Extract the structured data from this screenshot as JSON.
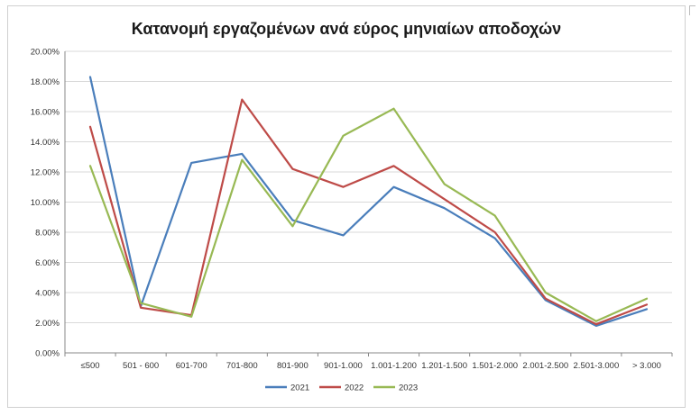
{
  "chart_data": {
    "type": "line",
    "title": "Κατανομή εργαζομένων ανά εύρος μηνιαίων αποδοχών",
    "xlabel": "",
    "ylabel": "",
    "ylim": [
      0,
      20
    ],
    "y_ticks": [
      "0.00%",
      "2.00%",
      "4.00%",
      "6.00%",
      "8.00%",
      "10.00%",
      "12.00%",
      "14.00%",
      "16.00%",
      "18.00%",
      "20.00%"
    ],
    "grid": true,
    "legend_position": "bottom",
    "categories": [
      "≤500",
      "501 - 600",
      "601-700",
      "701-800",
      "801-900",
      "901-1.000",
      "1.001-1.200",
      "1.201-1.500",
      "1.501-2.000",
      "2.001-2.500",
      "2.501-3.000",
      "> 3.000"
    ],
    "series": [
      {
        "name": "2021",
        "color": "#4a7ebb",
        "values": [
          18.3,
          3.1,
          12.6,
          13.2,
          8.8,
          7.8,
          11.0,
          9.6,
          7.6,
          3.5,
          1.8,
          2.9
        ]
      },
      {
        "name": "2022",
        "color": "#be4b48",
        "values": [
          15.0,
          3.0,
          2.5,
          16.8,
          12.2,
          11.0,
          12.4,
          10.2,
          8.0,
          3.6,
          1.9,
          3.2
        ]
      },
      {
        "name": "2023",
        "color": "#98b954",
        "values": [
          12.4,
          3.3,
          2.4,
          12.8,
          8.4,
          14.4,
          16.2,
          11.2,
          9.1,
          4.0,
          2.1,
          3.6
        ]
      }
    ]
  }
}
